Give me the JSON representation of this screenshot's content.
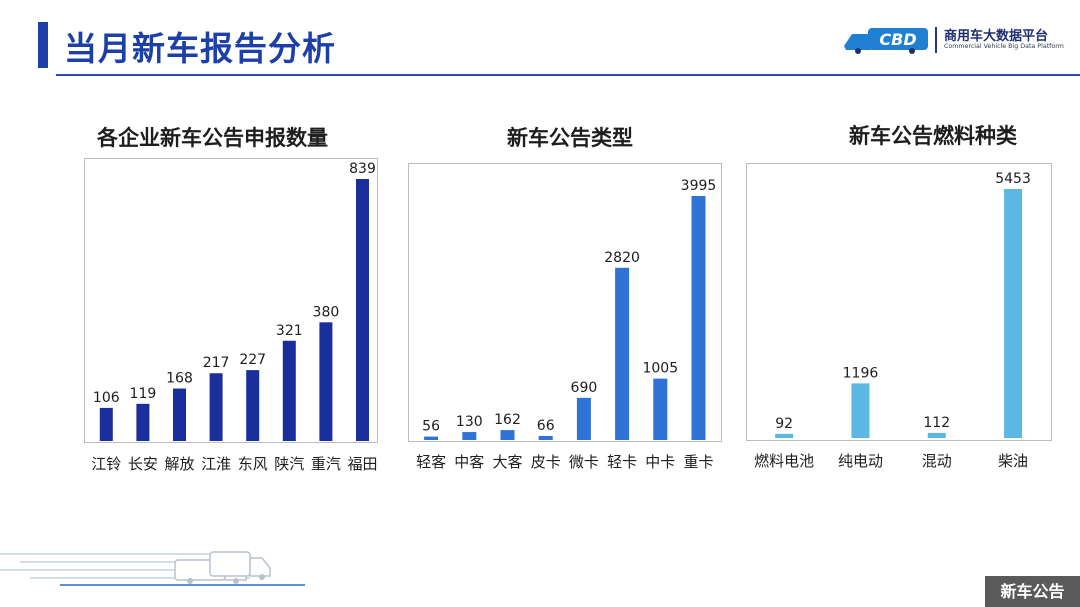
{
  "page": {
    "title": "当月新车报告分析",
    "tag": "新车公告"
  },
  "logo": {
    "mark_text": "CBD",
    "name_cn": "商用车大数据平台",
    "name_en": "Commercial Vehicle Big Data Platform"
  },
  "colors": {
    "title": "#1c3fa8",
    "rule": "#2a4bb5",
    "bar_enterprise": "#1a2f9c",
    "bar_type": "#2f73d6",
    "bar_fuel": "#5bb7e4",
    "tag_bg": "#5a5a5a"
  },
  "icons": [
    "logo-truck-icon",
    "trucks-decoration-icon"
  ],
  "chart_data": [
    {
      "type": "bar",
      "title": "各企业新车公告申报数量",
      "categories": [
        "江铃",
        "长安",
        "解放",
        "江淮",
        "东风",
        "陕汽",
        "重汽",
        "福田"
      ],
      "values": [
        106,
        119,
        168,
        217,
        227,
        321,
        380,
        839
      ],
      "ylim": [
        0,
        839
      ],
      "grid": false,
      "data_labels": true
    },
    {
      "type": "bar",
      "title": "新车公告类型",
      "categories": [
        "轻客",
        "中客",
        "大客",
        "皮卡",
        "微卡",
        "轻卡",
        "中卡",
        "重卡"
      ],
      "values": [
        56,
        130,
        162,
        66,
        690,
        2820,
        1005,
        3995
      ],
      "ylim": [
        0,
        3995
      ],
      "grid": false,
      "data_labels": true
    },
    {
      "type": "bar",
      "title": "新车公告燃料种类",
      "categories": [
        "燃料电池",
        "纯电动",
        "混动",
        "柴油"
      ],
      "values": [
        92,
        1196,
        112,
        5453
      ],
      "ylim": [
        0,
        5453
      ],
      "grid": false,
      "data_labels": true
    }
  ]
}
